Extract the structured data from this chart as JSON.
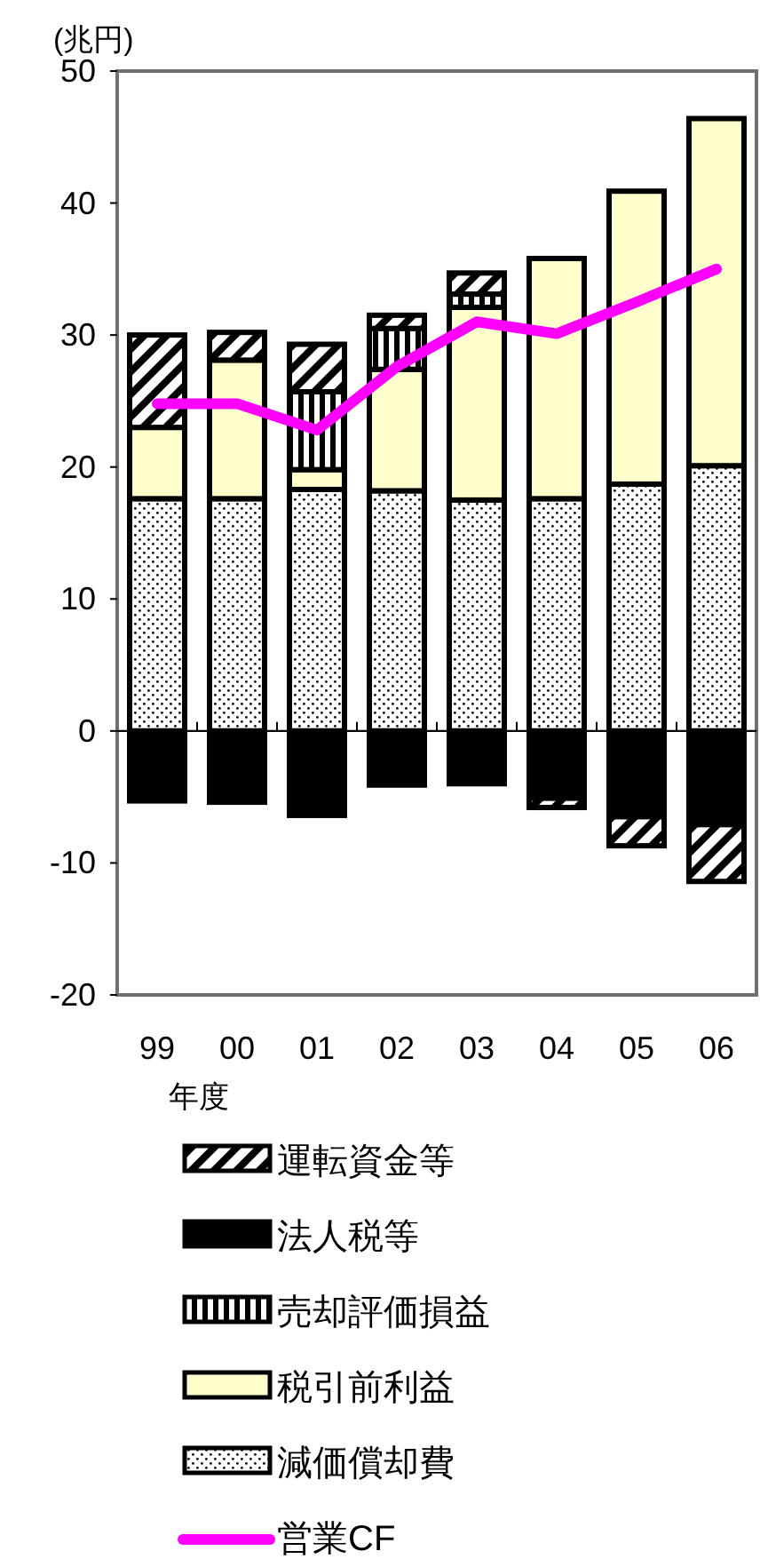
{
  "chart_data": {
    "type": "bar",
    "stacked": true,
    "ylabel": "(兆円)",
    "xlabel": "年度",
    "categories": [
      "99",
      "00",
      "01",
      "02",
      "03",
      "04",
      "05",
      "06"
    ],
    "ylim": [
      -20,
      50
    ],
    "yticks": [
      -20,
      -10,
      0,
      10,
      20,
      30,
      40,
      50
    ],
    "legend": "bottom",
    "series": [
      {
        "name": "減価償却費",
        "color": "#000000",
        "values": [
          17.6,
          17.6,
          18.3,
          18.2,
          17.5,
          17.6,
          18.7,
          20.1
        ]
      },
      {
        "name": "税引前利益",
        "color": "#ffffcc",
        "values": [
          5.4,
          10.5,
          1.5,
          9.2,
          14.6,
          18.2,
          22.2,
          26.3
        ]
      },
      {
        "name": "売却評価損益",
        "color": "#000000",
        "values": [
          null,
          0,
          5.9,
          3.1,
          1.0,
          0,
          null,
          0
        ]
      },
      {
        "name": "法人税等",
        "color": "#000000",
        "values": [
          -5.3,
          -5.4,
          -6.4,
          -4.1,
          -4.0,
          -5.1,
          -6.5,
          -7.1
        ]
      },
      {
        "name": "運転資金等",
        "color": "#000000",
        "values": [
          7.0,
          2.1,
          3.6,
          1.0,
          1.6,
          -0.7,
          -2.2,
          -4.3
        ]
      },
      {
        "name": "営業CF",
        "type": "line",
        "color": "#ff00ff",
        "marker": "none",
        "values": [
          24.8,
          24.8,
          22.8,
          27.6,
          31.0,
          30.1,
          32.5,
          35.0
        ]
      }
    ]
  }
}
